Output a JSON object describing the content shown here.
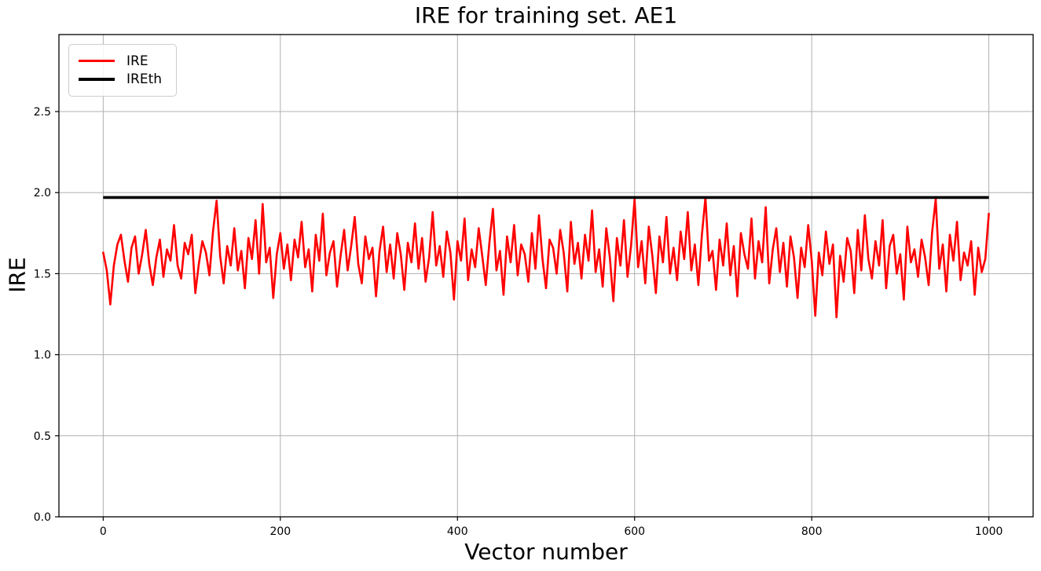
{
  "chart_data": {
    "type": "line",
    "title": "IRE for training set. AE1",
    "xlabel": "Vector number",
    "ylabel": "IRE",
    "xlim": [
      -50,
      1050
    ],
    "ylim": [
      0,
      2.975
    ],
    "x_ticks": [
      0,
      200,
      400,
      600,
      800,
      1000
    ],
    "x_tick_labels": [
      "0",
      "200",
      "400",
      "600",
      "800",
      "1000"
    ],
    "y_ticks": [
      0,
      0.5,
      1.0,
      1.5,
      2.0,
      2.5
    ],
    "y_tick_labels": [
      "0.0",
      "0.5",
      "1.0",
      "1.5",
      "2.0",
      "2.5"
    ],
    "grid": true,
    "grid_color": "#b0b0b0",
    "background_color": "#ffffff",
    "legend_position": "upper-left",
    "legend": [
      "IRE",
      "IREth"
    ],
    "series": [
      {
        "name": "IRE",
        "color": "#ff0000",
        "line_width": 2.6,
        "x_start": 0,
        "x_step": 4,
        "values": [
          1.63,
          1.52,
          1.31,
          1.55,
          1.68,
          1.74,
          1.58,
          1.45,
          1.66,
          1.73,
          1.5,
          1.62,
          1.77,
          1.56,
          1.43,
          1.6,
          1.71,
          1.48,
          1.65,
          1.58,
          1.8,
          1.55,
          1.47,
          1.69,
          1.62,
          1.74,
          1.38,
          1.56,
          1.7,
          1.63,
          1.49,
          1.76,
          1.95,
          1.61,
          1.44,
          1.67,
          1.55,
          1.78,
          1.52,
          1.64,
          1.41,
          1.72,
          1.59,
          1.83,
          1.5,
          1.93,
          1.57,
          1.66,
          1.35,
          1.62,
          1.75,
          1.53,
          1.68,
          1.46,
          1.71,
          1.6,
          1.82,
          1.54,
          1.65,
          1.39,
          1.74,
          1.58,
          1.87,
          1.49,
          1.63,
          1.7,
          1.42,
          1.61,
          1.77,
          1.52,
          1.67,
          1.85,
          1.56,
          1.44,
          1.73,
          1.59,
          1.66,
          1.36,
          1.64,
          1.79,
          1.51,
          1.68,
          1.47,
          1.75,
          1.62,
          1.4,
          1.69,
          1.57,
          1.81,
          1.53,
          1.72,
          1.45,
          1.6,
          1.88,
          1.55,
          1.67,
          1.48,
          1.76,
          1.63,
          1.34,
          1.7,
          1.58,
          1.84,
          1.46,
          1.65,
          1.54,
          1.78,
          1.61,
          1.43,
          1.69,
          1.9,
          1.52,
          1.64,
          1.37,
          1.73,
          1.57,
          1.8,
          1.49,
          1.68,
          1.62,
          1.45,
          1.75,
          1.53,
          1.86,
          1.59,
          1.41,
          1.71,
          1.66,
          1.5,
          1.77,
          1.63,
          1.39,
          1.82,
          1.56,
          1.69,
          1.47,
          1.74,
          1.58,
          1.89,
          1.51,
          1.65,
          1.42,
          1.78,
          1.6,
          1.33,
          1.72,
          1.55,
          1.83,
          1.48,
          1.67,
          1.96,
          1.54,
          1.7,
          1.44,
          1.79,
          1.61,
          1.38,
          1.73,
          1.57,
          1.85,
          1.5,
          1.66,
          1.46,
          1.76,
          1.59,
          1.88,
          1.52,
          1.68,
          1.43,
          1.74,
          1.97,
          1.58,
          1.64,
          1.4,
          1.71,
          1.55,
          1.81,
          1.49,
          1.67,
          1.36,
          1.75,
          1.62,
          1.53,
          1.84,
          1.47,
          1.7,
          1.57,
          1.91,
          1.44,
          1.65,
          1.78,
          1.51,
          1.69,
          1.42,
          1.73,
          1.6,
          1.35,
          1.66,
          1.54,
          1.8,
          1.58,
          1.24,
          1.63,
          1.49,
          1.76,
          1.56,
          1.68,
          1.23,
          1.61,
          1.45,
          1.72,
          1.64,
          1.38,
          1.77,
          1.52,
          1.86,
          1.59,
          1.47,
          1.7,
          1.55,
          1.83,
          1.41,
          1.67,
          1.74,
          1.5,
          1.62,
          1.34,
          1.79,
          1.57,
          1.65,
          1.48,
          1.71,
          1.6,
          1.43,
          1.76,
          1.96,
          1.53,
          1.68,
          1.39,
          1.74,
          1.58,
          1.82,
          1.46,
          1.63,
          1.55,
          1.7,
          1.37,
          1.66,
          1.51,
          1.59,
          1.87
        ]
      },
      {
        "name": "IREth",
        "color": "#000000",
        "line_width": 3.6,
        "kind": "hline",
        "value": 1.97,
        "x_range": [
          0,
          1000
        ]
      }
    ]
  }
}
